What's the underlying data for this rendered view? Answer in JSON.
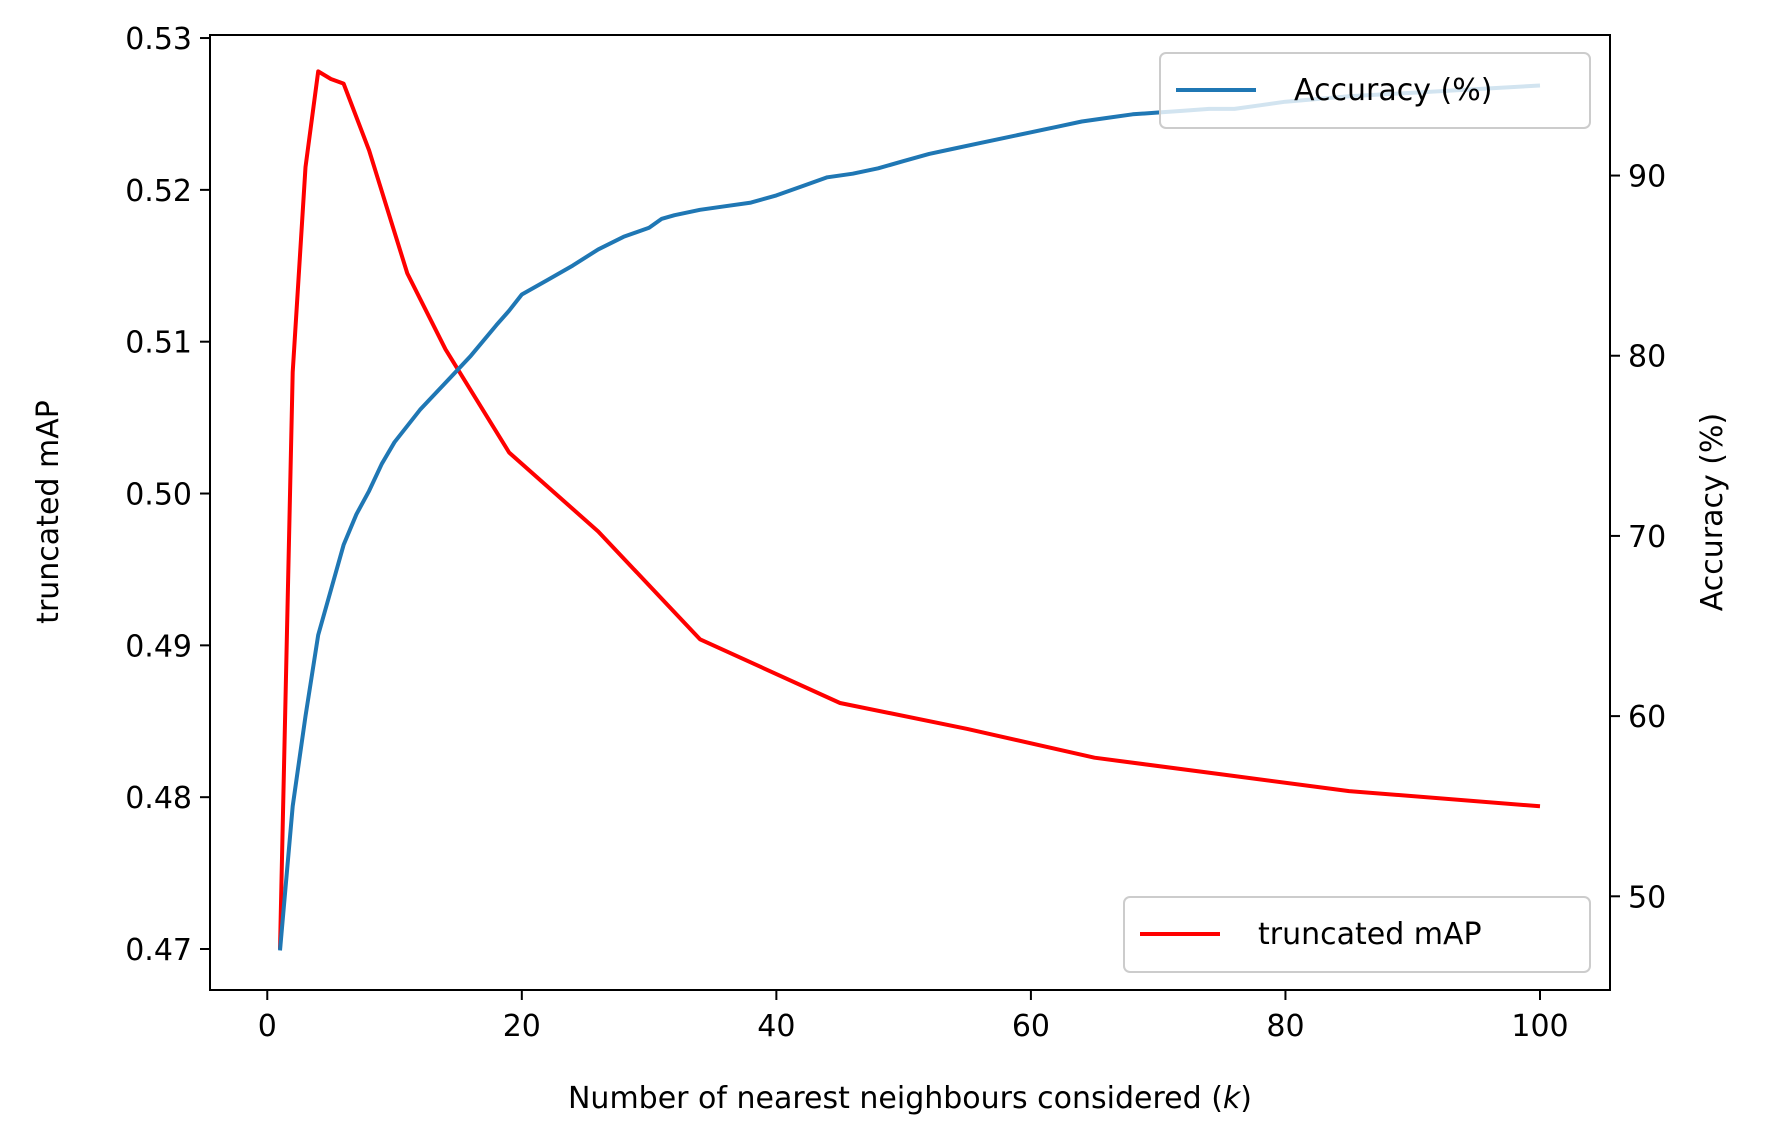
{
  "chart_data": {
    "type": "line",
    "xlabel": "Number of nearest neighbours considered (",
    "xlabel_var": "k",
    "xlabel_suffix": ")",
    "ylabel_left": "truncated mAP",
    "ylabel_right": "Accuracy (%)",
    "xlim": [
      -4.5,
      105.5
    ],
    "ylim_left": [
      0.4673,
      0.5302
    ],
    "ylim_right": [
      44.8,
      97.8
    ],
    "xticks": [
      0,
      20,
      40,
      60,
      80,
      100
    ],
    "yticks_left": [
      0.47,
      0.48,
      0.49,
      0.5,
      0.51,
      0.52,
      0.53
    ],
    "yticks_left_labels": [
      "0.47",
      "0.48",
      "0.49",
      "0.50",
      "0.51",
      "0.52",
      "0.53"
    ],
    "yticks_right": [
      50,
      60,
      70,
      80,
      90
    ],
    "grid": false,
    "series": [
      {
        "name": "truncated mAP",
        "axis": "left",
        "color": "#ff0000",
        "legend_loc": "lower-right",
        "x": [
          1,
          2,
          3,
          4,
          5,
          6,
          8,
          11,
          14,
          19,
          26,
          34,
          45,
          55,
          65,
          75,
          85,
          100
        ],
        "y": [
          0.47,
          0.508,
          0.5215,
          0.5278,
          0.5273,
          0.527,
          0.5226,
          0.5145,
          0.5095,
          0.5027,
          0.4975,
          0.4904,
          0.4862,
          0.4845,
          0.4826,
          0.4815,
          0.4804,
          0.4794
        ]
      },
      {
        "name": "Accuracy (%)",
        "axis": "right",
        "color": "#1f77b4",
        "legend_loc": "upper-right",
        "x": [
          1,
          2,
          3,
          4,
          5,
          6,
          7,
          8,
          9,
          10,
          12,
          14,
          16,
          18,
          19,
          20,
          22,
          24,
          26,
          28,
          30,
          31,
          32,
          34,
          36,
          38,
          40,
          42,
          44,
          46,
          48,
          50,
          52,
          54,
          56,
          58,
          60,
          62,
          64,
          66,
          68,
          70,
          72,
          74,
          76,
          78,
          80,
          85,
          90,
          95,
          100
        ],
        "y": [
          47.0,
          55.0,
          60.0,
          64.5,
          67.0,
          69.5,
          71.2,
          72.5,
          74.0,
          75.2,
          77.0,
          78.5,
          80.0,
          81.7,
          82.5,
          83.4,
          84.2,
          85.0,
          85.9,
          86.6,
          87.1,
          87.6,
          87.8,
          88.1,
          88.3,
          88.5,
          88.9,
          89.4,
          89.9,
          90.1,
          90.4,
          90.8,
          91.2,
          91.5,
          91.8,
          92.1,
          92.4,
          92.7,
          93.0,
          93.2,
          93.4,
          93.5,
          93.6,
          93.7,
          93.7,
          93.9,
          94.1,
          94.4,
          94.6,
          94.8,
          95.0
        ]
      }
    ]
  }
}
